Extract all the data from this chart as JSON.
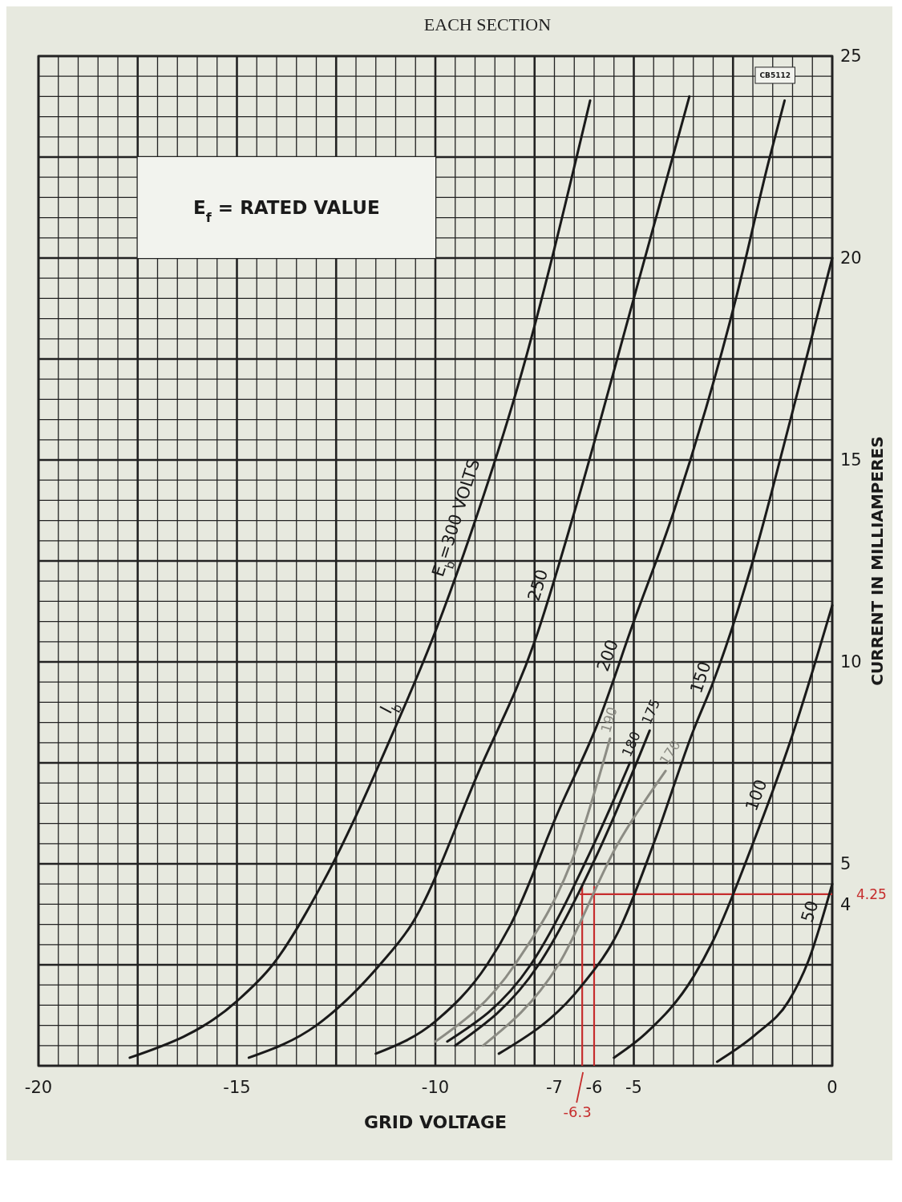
{
  "chart_data": {
    "type": "line",
    "title": "EACH SECTION",
    "xlabel": "GRID VOLTAGE",
    "ylabel": "CURRENT IN MILLIAMPERES",
    "annotations": [
      "E$_{f}$ = RATED VALUE",
      "CB5112",
      "I$_{b}$"
    ],
    "xlim": [
      -20,
      0
    ],
    "ylim": [
      0,
      25
    ],
    "xticks": [
      -20,
      {
        "value": -19.5,
        "label": null
      },
      {
        "value": -19,
        "label": null
      },
      {
        "value": -18.5,
        "label": null
      },
      {
        "value": -18,
        "label": null
      },
      {
        "value": -17.5,
        "label": null
      },
      {
        "value": -17,
        "label": null
      },
      {
        "value": -16.5,
        "label": null
      },
      {
        "value": -16,
        "label": null
      },
      {
        "value": -15.5,
        "label": null
      },
      -15,
      {
        "value": -14.5,
        "label": null
      },
      {
        "value": -14,
        "label": null
      },
      {
        "value": -13.5,
        "label": null
      },
      {
        "value": -13,
        "label": null
      },
      {
        "value": -12.5,
        "label": null
      },
      {
        "value": -12,
        "label": null
      },
      {
        "value": -11.5,
        "label": null
      },
      {
        "value": -11,
        "label": null
      },
      {
        "value": -10.5,
        "label": null
      },
      -10,
      {
        "value": -9.5,
        "label": null
      },
      {
        "value": -9,
        "label": null
      },
      {
        "value": -8.5,
        "label": null
      },
      {
        "value": -8,
        "label": null
      },
      {
        "value": -7.5,
        "label": null
      },
      -7,
      {
        "value": -6.5,
        "label": null
      },
      -6,
      {
        "value": -5.5,
        "label": null
      },
      -5,
      {
        "value": -4.5,
        "label": null
      },
      {
        "value": -4,
        "label": null
      },
      {
        "value": -3.5,
        "label": null
      },
      {
        "value": -3,
        "label": null
      },
      {
        "value": -2.5,
        "label": null
      },
      {
        "value": -2,
        "label": null
      },
      {
        "value": -1.5,
        "label": null
      },
      {
        "value": -1,
        "label": null
      },
      {
        "value": -0.5,
        "label": null
      },
      0
    ],
    "yticks": [
      {
        "value": 0,
        "label": null
      },
      {
        "value": 0.5,
        "label": null
      },
      {
        "value": 1,
        "label": null
      },
      {
        "value": 1.5,
        "label": null
      },
      {
        "value": 2,
        "label": null
      },
      {
        "value": 2.5,
        "label": null
      },
      {
        "value": 3,
        "label": null
      },
      {
        "value": 3.5,
        "label": null
      },
      4,
      {
        "value": 4.5,
        "label": null
      },
      5,
      {
        "value": 5.5,
        "label": null
      },
      {
        "value": 6,
        "label": null
      },
      {
        "value": 6.5,
        "label": null
      },
      {
        "value": 7,
        "label": null
      },
      {
        "value": 7.5,
        "label": null
      },
      {
        "value": 8,
        "label": null
      },
      {
        "value": 8.5,
        "label": null
      },
      {
        "value": 9,
        "label": null
      },
      {
        "value": 9.5,
        "label": null
      },
      10,
      {
        "value": 10.5,
        "label": null
      },
      {
        "value": 11,
        "label": null
      },
      {
        "value": 11.5,
        "label": null
      },
      {
        "value": 12,
        "label": null
      },
      {
        "value": 12.5,
        "label": null
      },
      {
        "value": 13,
        "label": null
      },
      {
        "value": 13.5,
        "label": null
      },
      {
        "value": 14,
        "label": null
      },
      {
        "value": 14.5,
        "label": null
      },
      15,
      {
        "value": 15.5,
        "label": null
      },
      {
        "value": 16,
        "label": null
      },
      {
        "value": 16.5,
        "label": null
      },
      {
        "value": 17,
        "label": null
      },
      {
        "value": 17.5,
        "label": null
      },
      {
        "value": 18,
        "label": null
      },
      {
        "value": 18.5,
        "label": null
      },
      {
        "value": 19,
        "label": null
      },
      {
        "value": 19.5,
        "label": null
      },
      20,
      {
        "value": 20.5,
        "label": null
      },
      {
        "value": 21,
        "label": null
      },
      {
        "value": 21.5,
        "label": null
      },
      {
        "value": 22,
        "label": null
      },
      {
        "value": 22.5,
        "label": null
      },
      {
        "value": 23,
        "label": null
      },
      {
        "value": 23.5,
        "label": null
      },
      {
        "value": 24,
        "label": null
      },
      {
        "value": 24.5,
        "label": null
      },
      25
    ],
    "grid": true,
    "series": [
      {
        "name": "E$_{b}$=300 VOLTS",
        "color": "#1a1a1a",
        "x": [
          -17.7,
          -15.0,
          -14.1,
          -12.8,
          -11.0,
          -10.1,
          -9.1,
          -7.9,
          -6.1
        ],
        "values": [
          0.2,
          1.6,
          2.5,
          4.6,
          8.4,
          10.5,
          13.2,
          16.9,
          23.9
        ]
      },
      {
        "name": "250",
        "color": "#1a1a1a",
        "x": [
          -14.7,
          -13.0,
          -11.4,
          -10.6,
          -8.9,
          -7.5,
          -6.5,
          -5.0,
          -3.6
        ],
        "values": [
          0.2,
          1.0,
          2.5,
          3.5,
          7.3,
          10.5,
          13.7,
          19.0,
          24.0
        ]
      },
      {
        "name": "200",
        "color": "#1a1a1a",
        "x": [
          -11.5,
          -10.0,
          -8.7,
          -8.1,
          -6.9,
          -5.9,
          -5.0,
          -4.0,
          -2.4,
          -1.6,
          -1.2
        ],
        "values": [
          0.3,
          1.1,
          2.5,
          3.5,
          6.3,
          8.5,
          11.0,
          13.7,
          19.1,
          22.4,
          23.9
        ]
      },
      {
        "name": "190",
        "color": "#8c8c84",
        "x": [
          -10.0,
          -8.0,
          -6.4,
          -5.6
        ],
        "values": [
          0.6,
          2.5,
          5.5,
          8.1
        ]
      },
      {
        "name": "180",
        "color": "#1a1a1a",
        "x": [
          -9.7,
          -7.6,
          -6.0,
          -5.1
        ],
        "values": [
          0.6,
          2.5,
          5.5,
          7.5
        ]
      },
      {
        "name": "175",
        "color": "#1a1a1a",
        "x": [
          -9.5,
          -7.4,
          -5.8,
          -4.6
        ],
        "values": [
          0.5,
          2.5,
          5.5,
          8.3
        ]
      },
      {
        "name": "170",
        "color": "#8c8c84",
        "x": [
          -8.8,
          -6.9,
          -5.4,
          -4.2
        ],
        "values": [
          0.5,
          2.5,
          5.5,
          7.3
        ]
      },
      {
        "name": "150",
        "color": "#1a1a1a",
        "x": [
          -8.4,
          -6.3,
          -5.4,
          -4.5,
          -3.5,
          -3.0,
          -2.0,
          -1.0,
          0
        ],
        "values": [
          0.3,
          2.0,
          3.3,
          5.5,
          8.3,
          9.5,
          12.5,
          16.2,
          20.0
        ]
      },
      {
        "name": "100",
        "color": "#1a1a1a",
        "x": [
          -5.5,
          -4.7,
          -3.5,
          -3.0,
          -2.0,
          -1.0,
          0
        ],
        "values": [
          0.2,
          0.8,
          2.2,
          3.1,
          5.5,
          8.2,
          11.4
        ]
      },
      {
        "name": "50",
        "color": "#1a1a1a",
        "x": [
          -2.9,
          -1.9,
          -1.1,
          -0.6,
          0
        ],
        "values": [
          0.1,
          0.8,
          1.6,
          2.6,
          4.5
        ]
      }
    ],
    "ref_lines": [
      {
        "axis": "x",
        "value": -6.3,
        "label": "-6.3",
        "color": "#c62d2d"
      },
      {
        "axis": "x",
        "value": -6,
        "label": null,
        "color": "#c62d2d"
      },
      {
        "axis": "y",
        "value": 4.25,
        "label": "4.25",
        "color": "#c62d2d"
      }
    ]
  }
}
